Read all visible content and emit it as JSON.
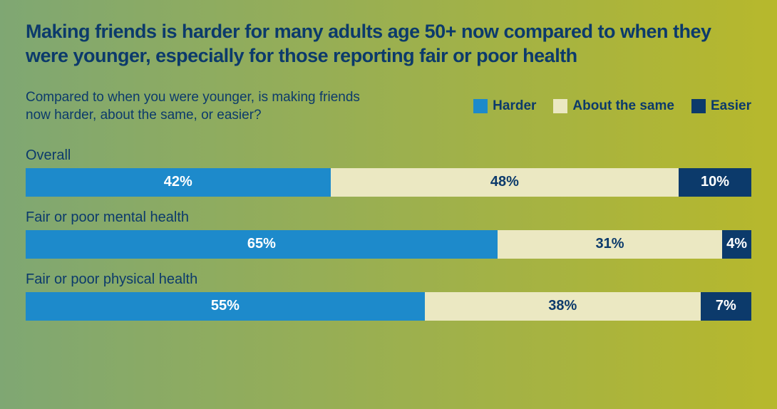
{
  "chart": {
    "type": "stacked-bar-horizontal",
    "title": "Making friends is harder for many adults age 50+ now compared to when they were younger, especially for those reporting fair or poor health",
    "question": "Compared to when you were younger, is making friends now harder, about the same, or easier?",
    "title_color": "#0c3a6b",
    "text_color": "#0c3a6b",
    "background_gradient": {
      "from": "#7fa773",
      "to": "#b7b82c",
      "direction": "to right"
    },
    "legend": [
      {
        "label": "Harder",
        "color": "#1d8acb",
        "text_color": "#ffffff"
      },
      {
        "label": "About the same",
        "color": "#ebe8c2",
        "text_color": "#0c3a6b"
      },
      {
        "label": "Easier",
        "color": "#0c3a6b",
        "text_color": "#ffffff"
      }
    ],
    "rows": [
      {
        "label": "Overall",
        "segments": [
          {
            "value": 42,
            "text": "42%"
          },
          {
            "value": 48,
            "text": "48%"
          },
          {
            "value": 10,
            "text": "10%"
          }
        ]
      },
      {
        "label": "Fair or poor mental health",
        "segments": [
          {
            "value": 65,
            "text": "65%"
          },
          {
            "value": 31,
            "text": "31%"
          },
          {
            "value": 4,
            "text": "4%"
          }
        ]
      },
      {
        "label": "Fair or poor physical health",
        "segments": [
          {
            "value": 55,
            "text": "55%"
          },
          {
            "value": 38,
            "text": "38%"
          },
          {
            "value": 7,
            "text": "7%"
          }
        ]
      }
    ]
  }
}
